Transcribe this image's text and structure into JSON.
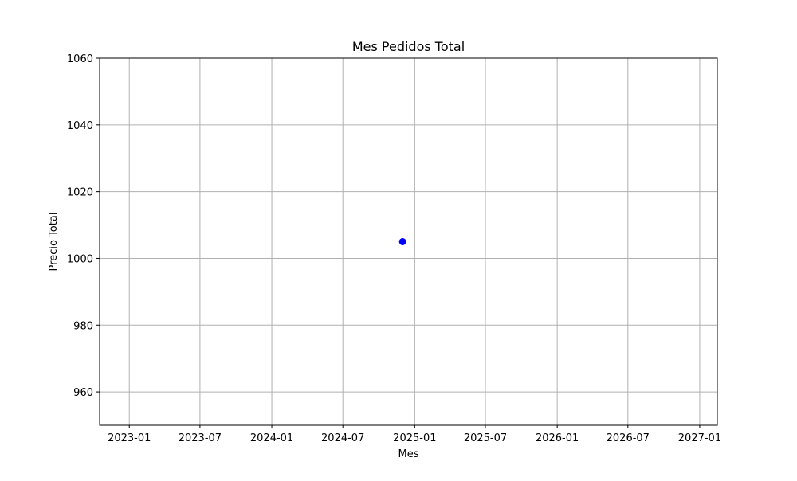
{
  "chart_data": {
    "type": "scatter",
    "title": "Mes Pedidos Total",
    "xlabel": "Mes",
    "ylabel": "Precio Total",
    "x_axis_kind": "date",
    "xlim": [
      "2022-10-17",
      "2027-02-15"
    ],
    "ylim": [
      950,
      1060
    ],
    "x_ticks": [
      "2023-01",
      "2023-07",
      "2024-01",
      "2024-07",
      "2025-01",
      "2025-07",
      "2026-01",
      "2026-07",
      "2027-01"
    ],
    "y_ticks": [
      960,
      980,
      1000,
      1020,
      1040,
      1060
    ],
    "grid": true,
    "legend": "none",
    "series": [
      {
        "color": "#0000ff",
        "marker": "circle",
        "points": [
          {
            "x": "2024-12-01",
            "y": 1005
          }
        ]
      }
    ]
  }
}
